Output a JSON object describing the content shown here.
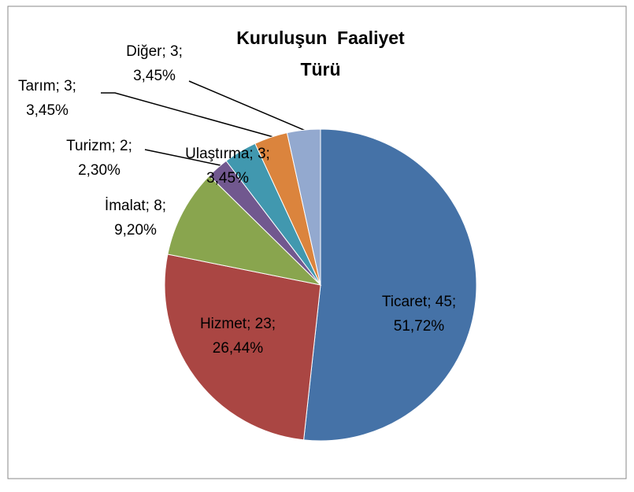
{
  "chart_data": {
    "type": "pie",
    "title": "Kuruluşun  Faaliyet Türü",
    "categories": [
      "Ticaret",
      "Hizmet",
      "İmalat",
      "Turizm",
      "Ulaştırma",
      "Tarım",
      "Diğer"
    ],
    "values": [
      45,
      23,
      8,
      2,
      3,
      3,
      3
    ],
    "value_labels": [
      [
        "Ticaret; 45;",
        "51,72%"
      ],
      [
        "Hizmet; 23;",
        "26,44%"
      ],
      [
        "İmalat; 8;",
        "9,20%"
      ],
      [
        "Turizm; 2;",
        "2,30%"
      ],
      [
        "Ulaştırma; 3;",
        "3,45%"
      ],
      [
        "Tarım; 3;",
        "3,45%"
      ],
      [
        "Diğer; 3;",
        "3,45%"
      ]
    ],
    "colors": [
      "#4572a7",
      "#aa4643",
      "#89a54e",
      "#71588f",
      "#4198af",
      "#db843d",
      "#93a9cf"
    ]
  }
}
